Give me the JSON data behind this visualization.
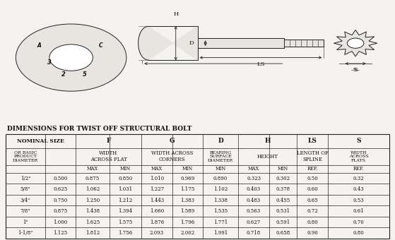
{
  "title": "DIMENSIONS FOR TWIST OFF STRUCTURAL BOLT",
  "bg_color": "#f5f3ef",
  "rows": [
    [
      "1/2\"",
      "0.500",
      "0.875",
      "0.850",
      "1.010",
      "0.969",
      "0.890",
      "0.323",
      "0.302",
      "0.50",
      "0.32"
    ],
    [
      "5/8\"",
      "0.625",
      "1.062",
      "1.031",
      "1.227",
      "1.175",
      "1.102",
      "0.403",
      "0.378",
      "0.60",
      "0.43"
    ],
    [
      "3/4\"",
      "0.750",
      "1.250",
      "1.212",
      "1.443",
      "1.383",
      "1.338",
      "0.483",
      "0.455",
      "0.65",
      "0.53"
    ],
    [
      "7/8\"",
      "0.875",
      "1.438",
      "1.394",
      "1.660",
      "1.589",
      "1.535",
      "0.563",
      "0.531",
      "0.72",
      "0.61"
    ],
    [
      "1\"",
      "1.000",
      "1.625",
      "1.575",
      "1.876",
      "1.796",
      "1.771",
      "0.627",
      "0.591",
      "0.80",
      "0.70"
    ],
    [
      "1-1/8\"",
      "1.125",
      "1.812",
      "1.756",
      "2.093",
      "2.002",
      "1.991",
      "0.718",
      "0.658",
      "0.90",
      "0.80"
    ]
  ],
  "lc": "#222222",
  "tc": "#111111",
  "fc": "#e8e5e0"
}
